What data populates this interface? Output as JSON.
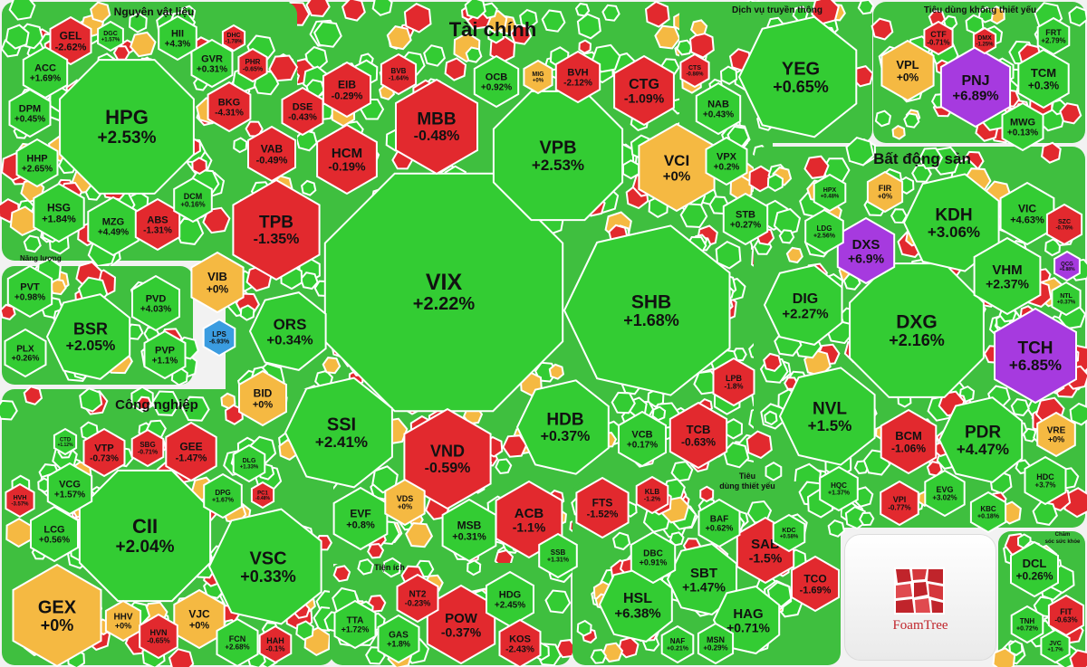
{
  "colors": {
    "up": "#33cc33",
    "down": "#e2292e",
    "flat": "#f5b942",
    "ceiling": "#a63adf",
    "floor": "#3b9ce0",
    "background": "#f2f2f2"
  },
  "brand": {
    "name": "FoamTree"
  },
  "chart_data": {
    "type": "heatmap",
    "title": "",
    "sectors": [
      {
        "name": "Tài chính",
        "stocks": [
          {
            "ticker": "VIX",
            "change": "+2.22%",
            "status": "up"
          },
          {
            "ticker": "SHB",
            "change": "+1.68%",
            "status": "up"
          },
          {
            "ticker": "VPB",
            "change": "+2.53%",
            "status": "up"
          },
          {
            "ticker": "SSI",
            "change": "+2.41%",
            "status": "up"
          },
          {
            "ticker": "HDB",
            "change": "+0.37%",
            "status": "up"
          },
          {
            "ticker": "VND",
            "change": "-0.59%",
            "status": "down"
          },
          {
            "ticker": "TPB",
            "change": "-1.35%",
            "status": "down"
          },
          {
            "ticker": "MBB",
            "change": "-0.48%",
            "status": "down"
          },
          {
            "ticker": "ORS",
            "change": "+0.34%",
            "status": "up"
          },
          {
            "ticker": "VCI",
            "change": "+0%",
            "status": "flat"
          },
          {
            "ticker": "CTG",
            "change": "-1.09%",
            "status": "down"
          },
          {
            "ticker": "ACB",
            "change": "-1.1%",
            "status": "down"
          },
          {
            "ticker": "HCM",
            "change": "-0.19%",
            "status": "down"
          },
          {
            "ticker": "TCB",
            "change": "-0.63%",
            "status": "down"
          },
          {
            "ticker": "FTS",
            "change": "-1.52%",
            "status": "down"
          },
          {
            "ticker": "MSB",
            "change": "+0.31%",
            "status": "up"
          },
          {
            "ticker": "EVF",
            "change": "+0.8%",
            "status": "up"
          },
          {
            "ticker": "VIB",
            "change": "+0%",
            "status": "flat"
          },
          {
            "ticker": "BID",
            "change": "+0%",
            "status": "flat"
          },
          {
            "ticker": "VDS",
            "change": "+0%",
            "status": "flat"
          },
          {
            "ticker": "LPS",
            "change": "-6.93%",
            "status": "floor"
          },
          {
            "ticker": "EIB",
            "change": "-0.29%",
            "status": "down"
          },
          {
            "ticker": "VAB",
            "change": "-0.49%",
            "status": "down"
          },
          {
            "ticker": "DSE",
            "change": "-0.43%",
            "status": "down"
          },
          {
            "ticker": "BVB",
            "change": "-1.64%",
            "status": "down"
          },
          {
            "ticker": "OCB",
            "change": "+0.92%",
            "status": "up"
          },
          {
            "ticker": "BVH",
            "change": "-2.12%",
            "status": "down"
          },
          {
            "ticker": "MIG",
            "change": "+0%",
            "status": "flat"
          },
          {
            "ticker": "CTS",
            "change": "-0.86%",
            "status": "down"
          },
          {
            "ticker": "NAB",
            "change": "+0.43%",
            "status": "up"
          },
          {
            "ticker": "VPX",
            "change": "+0.2%",
            "status": "up"
          },
          {
            "ticker": "STB",
            "change": "+0.27%",
            "status": "up"
          },
          {
            "ticker": "LPB",
            "change": "-1.8%",
            "status": "down"
          },
          {
            "ticker": "VCB",
            "change": "+0.17%",
            "status": "up"
          },
          {
            "ticker": "KLB",
            "change": "-1.2%",
            "status": "down"
          },
          {
            "ticker": "SSB",
            "change": "+1.31%",
            "status": "up"
          }
        ]
      },
      {
        "name": "Nguyên vật liệu",
        "stocks": [
          {
            "ticker": "HPG",
            "change": "+2.53%",
            "status": "up"
          },
          {
            "ticker": "GEL",
            "change": "-2.62%",
            "status": "down"
          },
          {
            "ticker": "HII",
            "change": "+4.3%",
            "status": "up"
          },
          {
            "ticker": "GVR",
            "change": "+0.31%",
            "status": "up"
          },
          {
            "ticker": "PHR",
            "change": "-0.65%",
            "status": "down"
          },
          {
            "ticker": "DHC",
            "change": "-1.78%",
            "status": "down"
          },
          {
            "ticker": "ACC",
            "change": "+1.69%",
            "status": "up"
          },
          {
            "ticker": "DPM",
            "change": "+0.45%",
            "status": "up"
          },
          {
            "ticker": "BKG",
            "change": "-4.31%",
            "status": "down"
          },
          {
            "ticker": "HHP",
            "change": "+2.65%",
            "status": "up"
          },
          {
            "ticker": "HSG",
            "change": "+1.84%",
            "status": "up"
          },
          {
            "ticker": "MZG",
            "change": "+4.49%",
            "status": "up"
          },
          {
            "ticker": "ABS",
            "change": "-1.31%",
            "status": "down"
          },
          {
            "ticker": "DCM",
            "change": "+0.16%",
            "status": "up"
          },
          {
            "ticker": "DGC",
            "change": "+1.57%",
            "status": "up"
          }
        ]
      },
      {
        "name": "Dịch vụ truyền thông",
        "stocks": [
          {
            "ticker": "YEG",
            "change": "+0.65%",
            "status": "up"
          }
        ]
      },
      {
        "name": "Tiêu dùng không thiết yếu",
        "stocks": [
          {
            "ticker": "PNJ",
            "change": "+6.89%",
            "status": "ceiling"
          },
          {
            "ticker": "VPL",
            "change": "+0%",
            "status": "flat"
          },
          {
            "ticker": "TCM",
            "change": "+0.3%",
            "status": "up"
          },
          {
            "ticker": "MWG",
            "change": "+0.13%",
            "status": "up"
          },
          {
            "ticker": "CTF",
            "change": "-0.71%",
            "status": "down"
          },
          {
            "ticker": "FRT",
            "change": "+2.79%",
            "status": "up"
          },
          {
            "ticker": "DMX",
            "change": "-1.25%",
            "status": "down"
          }
        ]
      },
      {
        "name": "Bất động sản",
        "stocks": [
          {
            "ticker": "DXG",
            "change": "+2.16%",
            "status": "up"
          },
          {
            "ticker": "KDH",
            "change": "+3.06%",
            "status": "up"
          },
          {
            "ticker": "NVL",
            "change": "+1.5%",
            "status": "up"
          },
          {
            "ticker": "TCH",
            "change": "+6.85%",
            "status": "ceiling"
          },
          {
            "ticker": "PDR",
            "change": "+4.47%",
            "status": "up"
          },
          {
            "ticker": "DIG",
            "change": "+2.27%",
            "status": "up"
          },
          {
            "ticker": "VHM",
            "change": "+2.37%",
            "status": "up"
          },
          {
            "ticker": "DXS",
            "change": "+6.9%",
            "status": "ceiling"
          },
          {
            "ticker": "BCM",
            "change": "-1.06%",
            "status": "down"
          },
          {
            "ticker": "VIC",
            "change": "+4.63%",
            "status": "up"
          },
          {
            "ticker": "FIR",
            "change": "+0%",
            "status": "flat"
          },
          {
            "ticker": "VRE",
            "change": "+0%",
            "status": "flat"
          },
          {
            "ticker": "HDC",
            "change": "+3.7%",
            "status": "up"
          },
          {
            "ticker": "EVG",
            "change": "+3.02%",
            "status": "up"
          },
          {
            "ticker": "SZC",
            "change": "-0.76%",
            "status": "down"
          },
          {
            "ticker": "QCG",
            "change": "+6.88%",
            "status": "ceiling"
          },
          {
            "ticker": "NTL",
            "change": "+0.37%",
            "status": "up"
          },
          {
            "ticker": "HPX",
            "change": "+0.48%",
            "status": "up"
          },
          {
            "ticker": "LDG",
            "change": "+2.56%",
            "status": "up"
          },
          {
            "ticker": "VPI",
            "change": "-0.77%",
            "status": "down"
          },
          {
            "ticker": "HQC",
            "change": "+1.37%",
            "status": "up"
          },
          {
            "ticker": "KBC",
            "change": "+0.18%",
            "status": "up"
          }
        ]
      },
      {
        "name": "Năng lượng",
        "stocks": [
          {
            "ticker": "BSR",
            "change": "+2.05%",
            "status": "up"
          },
          {
            "ticker": "PVD",
            "change": "+4.03%",
            "status": "up"
          },
          {
            "ticker": "PVT",
            "change": "+0.98%",
            "status": "up"
          },
          {
            "ticker": "PLX",
            "change": "+0.26%",
            "status": "up"
          },
          {
            "ticker": "PVP",
            "change": "+1.1%",
            "status": "up"
          }
        ]
      },
      {
        "name": "Công nghiệp",
        "stocks": [
          {
            "ticker": "CII",
            "change": "+2.04%",
            "status": "up"
          },
          {
            "ticker": "VSC",
            "change": "+0.33%",
            "status": "up"
          },
          {
            "ticker": "GEX",
            "change": "+0%",
            "status": "flat"
          },
          {
            "ticker": "GEE",
            "change": "-1.47%",
            "status": "down"
          },
          {
            "ticker": "VTP",
            "change": "-0.73%",
            "status": "down"
          },
          {
            "ticker": "SBG",
            "change": "-0.71%",
            "status": "down"
          },
          {
            "ticker": "VCG",
            "change": "+1.57%",
            "status": "up"
          },
          {
            "ticker": "LCG",
            "change": "+0.56%",
            "status": "up"
          },
          {
            "ticker": "VJC",
            "change": "+0%",
            "status": "flat"
          },
          {
            "ticker": "HHV",
            "change": "+0%",
            "status": "flat"
          },
          {
            "ticker": "HVN",
            "change": "-0.65%",
            "status": "down"
          },
          {
            "ticker": "FCN",
            "change": "+2.68%",
            "status": "up"
          },
          {
            "ticker": "HAH",
            "change": "-0.1%",
            "status": "down"
          },
          {
            "ticker": "DPG",
            "change": "+1.67%",
            "status": "up"
          },
          {
            "ticker": "DLG",
            "change": "+1.33%",
            "status": "up"
          },
          {
            "ticker": "HVH",
            "change": "-3.57%",
            "status": "down"
          },
          {
            "ticker": "CTD",
            "change": "+1.12%",
            "status": "up"
          },
          {
            "ticker": "PC1",
            "change": "-0.48%",
            "status": "down"
          }
        ]
      },
      {
        "name": "Tiện ích",
        "stocks": [
          {
            "ticker": "POW",
            "change": "-0.37%",
            "status": "down"
          },
          {
            "ticker": "NT2",
            "change": "-0.23%",
            "status": "down"
          },
          {
            "ticker": "HDG",
            "change": "+2.45%",
            "status": "up"
          },
          {
            "ticker": "GAS",
            "change": "+1.8%",
            "status": "up"
          },
          {
            "ticker": "TTA",
            "change": "+1.72%",
            "status": "up"
          },
          {
            "ticker": "KOS",
            "change": "-2.43%",
            "status": "down"
          }
        ]
      },
      {
        "name": "Tiêu dùng thiết yếu",
        "stocks": [
          {
            "ticker": "HSL",
            "change": "+6.38%",
            "status": "up"
          },
          {
            "ticker": "SBT",
            "change": "+1.47%",
            "status": "up"
          },
          {
            "ticker": "SAB",
            "change": "-1.5%",
            "status": "down"
          },
          {
            "ticker": "HAG",
            "change": "+0.71%",
            "status": "up"
          },
          {
            "ticker": "TCO",
            "change": "-1.69%",
            "status": "down"
          },
          {
            "ticker": "DBC",
            "change": "+0.91%",
            "status": "up"
          },
          {
            "ticker": "BAF",
            "change": "+0.62%",
            "status": "up"
          },
          {
            "ticker": "MSN",
            "change": "+0.29%",
            "status": "up"
          },
          {
            "ticker": "NAF",
            "change": "+0.21%",
            "status": "up"
          },
          {
            "ticker": "KDC",
            "change": "+0.58%",
            "status": "up"
          }
        ]
      },
      {
        "name": "Chăm sóc sức khỏe",
        "stocks": [
          {
            "ticker": "DCL",
            "change": "+0.26%",
            "status": "up"
          },
          {
            "ticker": "FIT",
            "change": "-0.63%",
            "status": "down"
          },
          {
            "ticker": "TNH",
            "change": "+0.72%",
            "status": "up"
          },
          {
            "ticker": "JVC",
            "change": "+1.7%",
            "status": "up"
          }
        ]
      }
    ]
  }
}
